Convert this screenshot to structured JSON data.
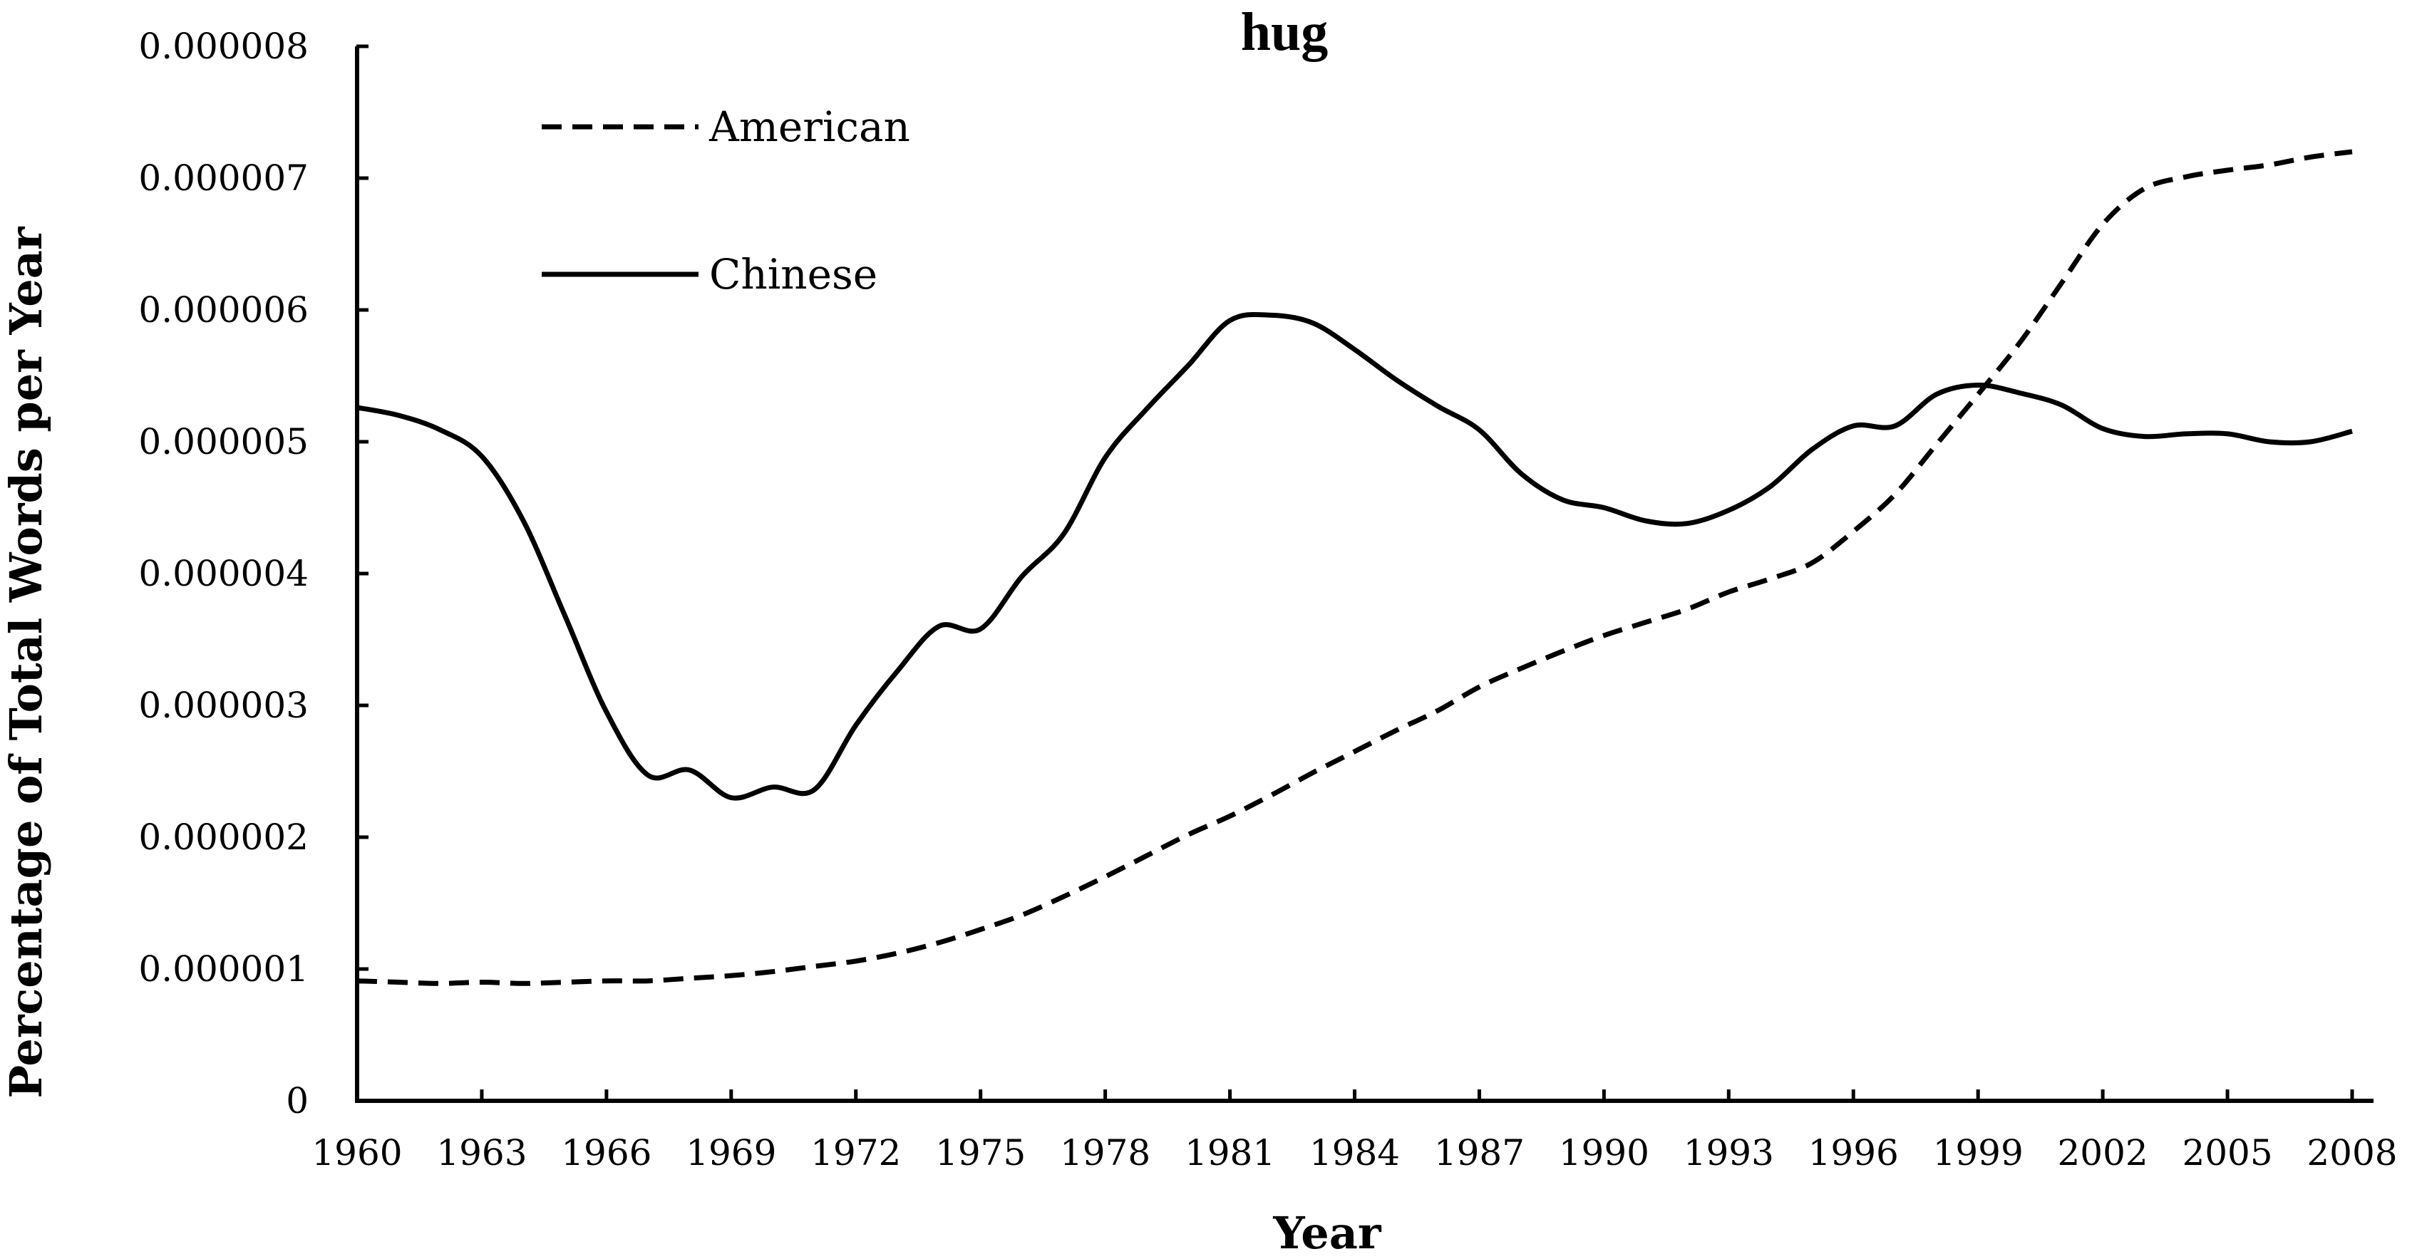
{
  "chart_data": {
    "type": "line",
    "title": "hug",
    "xlabel": "Year",
    "ylabel": "Percentage of Total Words per Year",
    "xlim": [
      1960,
      2008
    ],
    "ylim": [
      0,
      8e-06
    ],
    "x_tick_labels": [
      "1960",
      "1963",
      "1966",
      "1969",
      "1972",
      "1975",
      "1978",
      "1981",
      "1984",
      "1987",
      "1990",
      "1993",
      "1996",
      "1999",
      "2002",
      "2005",
      "2008"
    ],
    "y_tick_labels": [
      "0",
      "0.000001",
      "0.000002",
      "0.000003",
      "0.000004",
      "0.000005",
      "0.000006",
      "0.000007",
      "0.000008"
    ],
    "grid": false,
    "legend_position": "top-left",
    "x": [
      1960,
      1961,
      1962,
      1963,
      1964,
      1965,
      1966,
      1967,
      1968,
      1969,
      1970,
      1971,
      1972,
      1973,
      1974,
      1975,
      1976,
      1977,
      1978,
      1979,
      1980,
      1981,
      1982,
      1983,
      1984,
      1985,
      1986,
      1987,
      1988,
      1989,
      1990,
      1991,
      1992,
      1993,
      1994,
      1995,
      1996,
      1997,
      1998,
      1999,
      2000,
      2001,
      2002,
      2003,
      2004,
      2005,
      2006,
      2007,
      2008
    ],
    "series": [
      {
        "name": "American",
        "style": "dashed",
        "color": "#000000",
        "values": [
          9.1e-07,
          9e-07,
          8.9e-07,
          9e-07,
          8.9e-07,
          9e-07,
          9.1e-07,
          9.1e-07,
          9.3e-07,
          9.5e-07,
          9.8e-07,
          1.02e-06,
          1.06e-06,
          1.12e-06,
          1.2e-06,
          1.3e-06,
          1.41e-06,
          1.55e-06,
          1.7e-06,
          1.86e-06,
          2.02e-06,
          2.16e-06,
          2.32e-06,
          2.49e-06,
          2.65e-06,
          2.81e-06,
          2.96e-06,
          3.14e-06,
          3.28e-06,
          3.41e-06,
          3.53e-06,
          3.63e-06,
          3.73e-06,
          3.86e-06,
          3.96e-06,
          4.08e-06,
          4.32e-06,
          4.6e-06,
          4.98e-06,
          5.36e-06,
          5.75e-06,
          6.2e-06,
          6.65e-06,
          6.92e-06,
          7.01e-06,
          7.06e-06,
          7.1e-06,
          7.16e-06,
          7.2e-06
        ]
      },
      {
        "name": "Chinese",
        "style": "solid",
        "color": "#000000",
        "values": [
          5.26e-06,
          5.2e-06,
          5.09e-06,
          4.89e-06,
          4.4e-06,
          3.68e-06,
          2.95e-06,
          2.47e-06,
          2.51e-06,
          2.3e-06,
          2.38e-06,
          2.36e-06,
          2.85e-06,
          3.26e-06,
          3.6e-06,
          3.58e-06,
          3.98e-06,
          4.3e-06,
          4.88e-06,
          5.25e-06,
          5.58e-06,
          5.92e-06,
          5.96e-06,
          5.9e-06,
          5.7e-06,
          5.47e-06,
          5.27e-06,
          5.09e-06,
          4.76e-06,
          4.56e-06,
          4.5e-06,
          4.4e-06,
          4.38e-06,
          4.48e-06,
          4.66e-06,
          4.94e-06,
          5.12e-06,
          5.12e-06,
          5.36e-06,
          5.43e-06,
          5.37e-06,
          5.28e-06,
          5.1e-06,
          5.04e-06,
          5.06e-06,
          5.06e-06,
          5e-06,
          5e-06,
          5.08e-06
        ]
      }
    ]
  }
}
